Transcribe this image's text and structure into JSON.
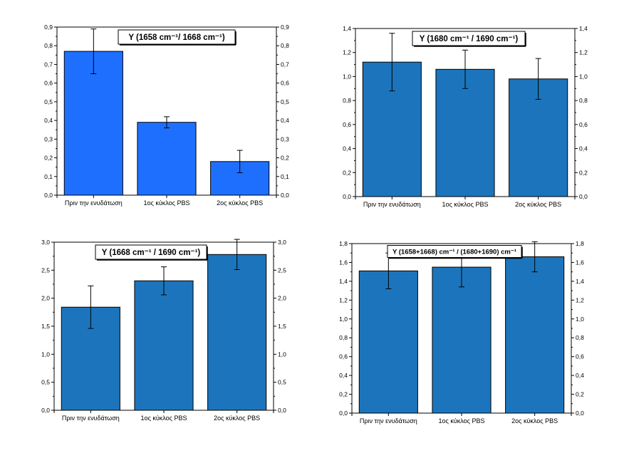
{
  "chart_data": [
    {
      "type": "bar",
      "title": "Y (1658 cm⁻¹/ 1668 cm⁻¹)",
      "categories": [
        "Πριν την ενυδάτωση",
        "1ος κύκλος PBS",
        "2ος κύκλος PBS"
      ],
      "values": [
        0.77,
        0.39,
        0.18
      ],
      "errors": [
        0.12,
        0.03,
        0.06
      ],
      "ylim": [
        0,
        0.9
      ],
      "yticks": [
        0.0,
        0.1,
        0.2,
        0.3,
        0.4,
        0.5,
        0.6,
        0.7,
        0.8,
        0.9
      ],
      "tick_labels": [
        "0,0",
        "0,1",
        "0,2",
        "0,3",
        "0,4",
        "0,5",
        "0,6",
        "0,7",
        "0,8",
        "0,9"
      ],
      "bar_color": "#1f6fff",
      "xlabel": "",
      "ylabel": ""
    },
    {
      "type": "bar",
      "title": "Y (1680 cm⁻¹ / 1690 cm⁻¹)",
      "categories": [
        "Πριν την ενυδάτωση",
        "1ος κύκλος PBS",
        "2ος κύκλος PBS"
      ],
      "values": [
        1.12,
        1.06,
        0.98
      ],
      "errors": [
        0.24,
        0.16,
        0.17
      ],
      "ylim": [
        0,
        1.4
      ],
      "yticks": [
        0.0,
        0.2,
        0.4,
        0.6,
        0.8,
        1.0,
        1.2,
        1.4
      ],
      "tick_labels": [
        "0,0",
        "0,2",
        "0,4",
        "0,6",
        "0,8",
        "1,0",
        "1,2",
        "1,4"
      ],
      "bar_color": "#1c75bc",
      "xlabel": "",
      "ylabel": ""
    },
    {
      "type": "bar",
      "title": "Y (1668 cm⁻¹ / 1690 cm⁻¹)",
      "categories": [
        "Πριν την ενυδάτωση",
        "1ος κύκλος PBS",
        "2ος κύκλος PBS"
      ],
      "values": [
        1.84,
        2.31,
        2.78
      ],
      "errors": [
        0.38,
        0.25,
        0.27
      ],
      "ylim": [
        0,
        3.0
      ],
      "yticks": [
        0.0,
        0.5,
        1.0,
        1.5,
        2.0,
        2.5,
        3.0
      ],
      "tick_labels": [
        "0,0",
        "0,5",
        "1,0",
        "1,5",
        "2,0",
        "2,5",
        "3,0"
      ],
      "bar_color": "#1c75bc",
      "xlabel": "",
      "ylabel": ""
    },
    {
      "type": "bar",
      "title": "Y (1658+1668) cm⁻¹ / (1680+1690) cm⁻¹",
      "categories": [
        "Πριν την ενυδάτωση",
        "1ος κύκλος PBS",
        "2ος κύκλος PBS"
      ],
      "values": [
        1.51,
        1.55,
        1.66
      ],
      "errors": [
        0.19,
        0.21,
        0.16
      ],
      "ylim": [
        0,
        1.8
      ],
      "yticks": [
        0.0,
        0.2,
        0.4,
        0.6,
        0.8,
        1.0,
        1.2,
        1.4,
        1.6,
        1.8
      ],
      "tick_labels": [
        "0,0",
        "0,2",
        "0,4",
        "0,6",
        "0,8",
        "1,0",
        "1,2",
        "1,4",
        "1,6",
        "1,8"
      ],
      "bar_color": "#1c75bc",
      "xlabel": "",
      "ylabel": ""
    }
  ]
}
